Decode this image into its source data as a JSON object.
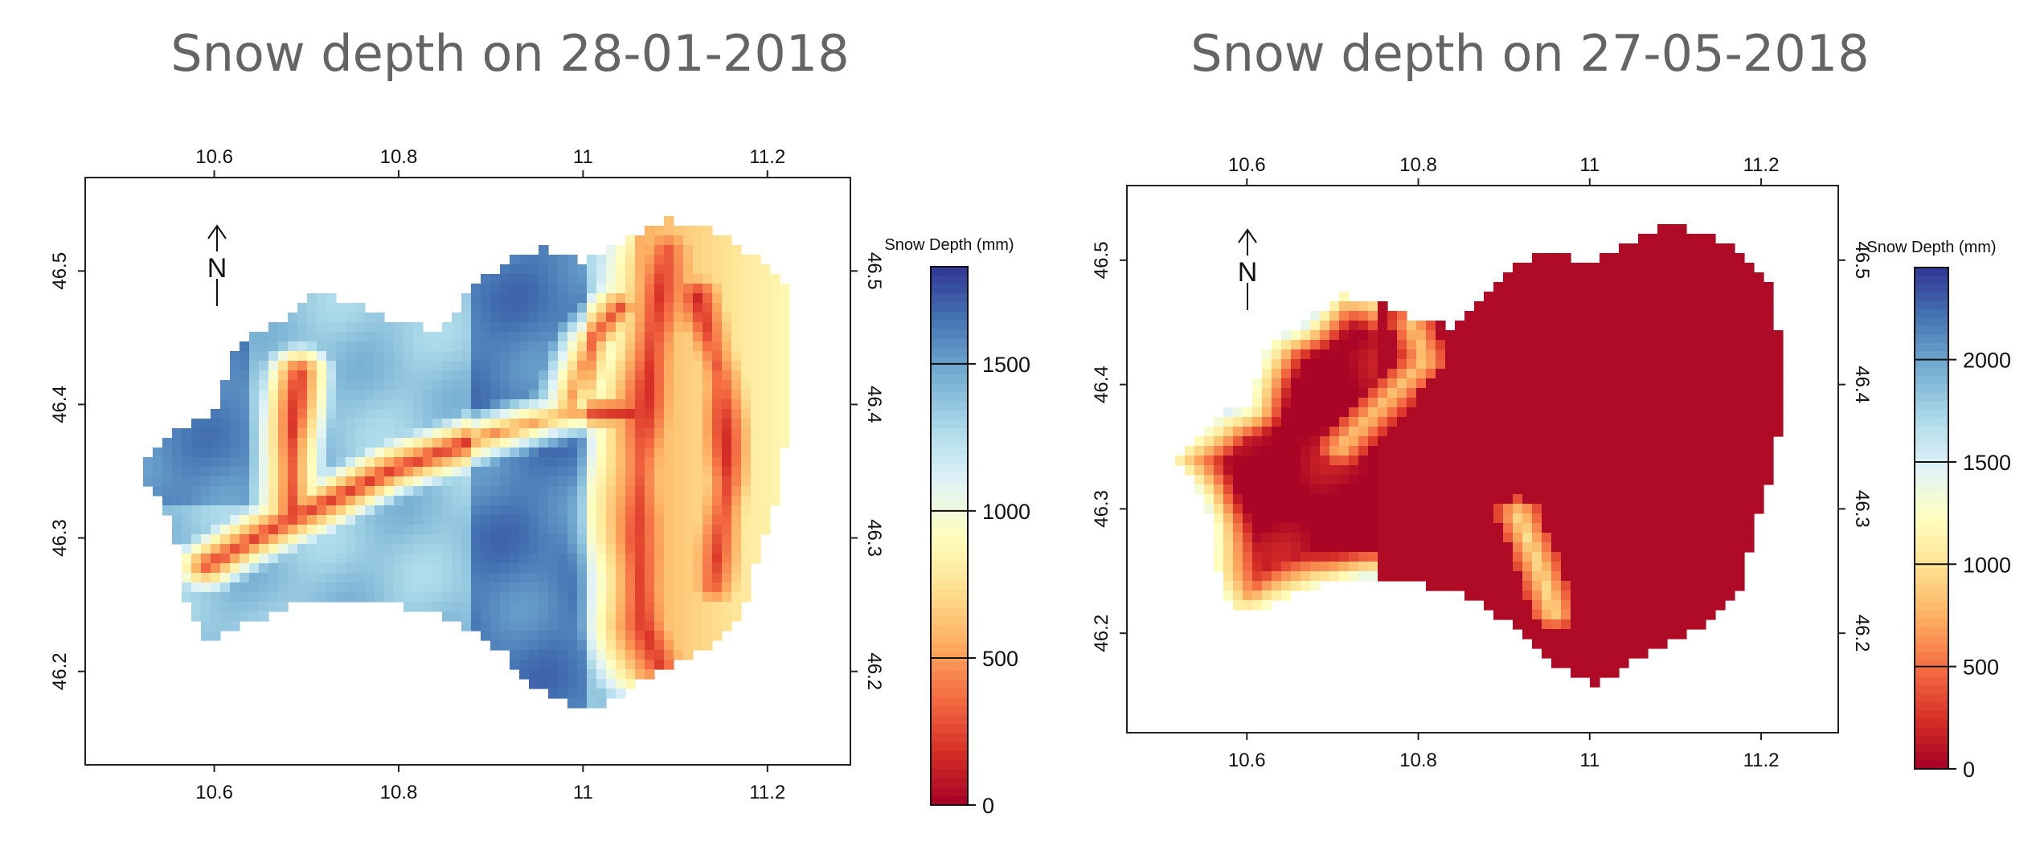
{
  "maps": [
    {
      "title": "Snow depth on 28-01-2018",
      "lon_ticks": [
        "10.6",
        "10.8",
        "11",
        "11.2"
      ],
      "lon_values": [
        10.6,
        10.8,
        11.0,
        11.2
      ],
      "lat_ticks": [
        "46.5",
        "46.4",
        "46.3",
        "46.2"
      ],
      "lat_values": [
        46.5,
        46.4,
        46.3,
        46.2
      ],
      "lon_range": [
        10.46,
        11.29
      ],
      "lat_range": [
        46.13,
        46.57
      ],
      "north_label": "N",
      "colorbar": {
        "title": "Snow Depth (mm)",
        "range": [
          0,
          1830
        ],
        "ticks": [
          0,
          500,
          1000,
          1500
        ],
        "tick_labels": [
          "0",
          "500",
          "1000",
          "1500"
        ]
      },
      "pattern": "january"
    },
    {
      "title": "Snow depth on 27-05-2018",
      "lon_ticks": [
        "10.6",
        "10.8",
        "11",
        "11.2"
      ],
      "lon_values": [
        10.6,
        10.8,
        11.0,
        11.2
      ],
      "lat_ticks": [
        "46.5",
        "46.4",
        "46.3",
        "46.2"
      ],
      "lat_values": [
        46.5,
        46.4,
        46.3,
        46.2
      ],
      "lon_range": [
        10.46,
        11.29
      ],
      "lat_range": [
        46.12,
        46.56
      ],
      "north_label": "N",
      "colorbar": {
        "title": "Snow Depth (mm)",
        "range": [
          0,
          2450
        ],
        "ticks": [
          0,
          500,
          1000,
          1500,
          2000
        ],
        "tick_labels": [
          "0",
          "500",
          "1000",
          "1500",
          "2000"
        ]
      },
      "pattern": "may"
    }
  ],
  "colors": {
    "title": "#646464",
    "scale_stops": [
      "#a50026",
      "#d73027",
      "#f46d43",
      "#fdae61",
      "#fee090",
      "#ffffbf",
      "#e0f3f8",
      "#abd9e9",
      "#74add1",
      "#4575b4",
      "#313695"
    ]
  }
}
